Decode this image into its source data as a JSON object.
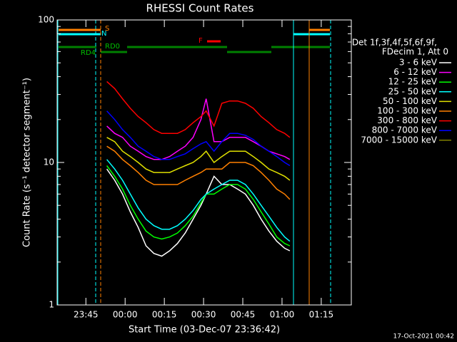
{
  "chart_data": {
    "type": "line",
    "title": "RHESSI Count Rates",
    "x_label": "Start Time (03-Dec-07 23:36:42)",
    "y_label": "Count Rate (s⁻¹ detector segment⁻¹)",
    "log_y": true,
    "legend_header": [
      "Det 1f,3f,4f,5f,6f,9f,",
      "FDecim 1, Att 0"
    ],
    "footer": "17-Oct-2021 00:42",
    "annotations": [
      "S",
      "N",
      "RD0",
      "RD4",
      "F"
    ],
    "xlim": [
      -26,
      86.5
    ],
    "xticks": [
      {
        "value": -15,
        "label": "23:45"
      },
      {
        "value": 0,
        "label": "00:00"
      },
      {
        "value": 15,
        "label": "00:15"
      },
      {
        "value": 30,
        "label": "00:30"
      },
      {
        "value": 45,
        "label": "00:45"
      },
      {
        "value": 60,
        "label": "01:00"
      },
      {
        "value": 75,
        "label": "01:15"
      }
    ],
    "ylim": [
      1,
      100
    ],
    "yticks": [
      1,
      10,
      100
    ],
    "x": [
      -7,
      -4,
      -1,
      2,
      5,
      8,
      11,
      14,
      17,
      20,
      23,
      26,
      29,
      31,
      34,
      37,
      40,
      43,
      46,
      49,
      52,
      55,
      58,
      61,
      63
    ],
    "series": [
      {
        "name": "3 - 6 keV",
        "color": "#ffffff",
        "values": [
          9,
          7.5,
          6,
          4.5,
          3.5,
          2.6,
          2.3,
          2.2,
          2.4,
          2.7,
          3.2,
          4,
          5,
          6,
          8,
          7,
          7,
          6.5,
          6,
          5,
          4,
          3.3,
          2.8,
          2.5,
          2.4
        ]
      },
      {
        "name": "6 - 12 keV",
        "color": "#ff00ff",
        "values": [
          18,
          16,
          15,
          13,
          12,
          11,
          10.5,
          10.5,
          11,
          12,
          13,
          15,
          20,
          28,
          14,
          14,
          15,
          15,
          15,
          14,
          13,
          12,
          11.5,
          11,
          10.5
        ]
      },
      {
        "name": "12 - 25 keV",
        "color": "#00ff00",
        "values": [
          9.5,
          8,
          6.5,
          5,
          4,
          3.3,
          3,
          2.9,
          3,
          3.2,
          3.6,
          4.2,
          5.2,
          6,
          6,
          6.5,
          7,
          7,
          6.5,
          5.5,
          4.5,
          3.7,
          3,
          2.7,
          2.6
        ]
      },
      {
        "name": "25 - 50 keV",
        "color": "#00ffff",
        "values": [
          10.5,
          9,
          7.5,
          6,
          4.8,
          4,
          3.6,
          3.4,
          3.4,
          3.6,
          4,
          4.6,
          5.5,
          6,
          6.5,
          7,
          7.5,
          7.5,
          7,
          6,
          5,
          4.2,
          3.5,
          3,
          2.8
        ]
      },
      {
        "name": "50 - 100 keV",
        "color": "#e0e000",
        "values": [
          15,
          14,
          12,
          11,
          10,
          9,
          8.5,
          8.5,
          8.5,
          9,
          9.5,
          10,
          11,
          12,
          10,
          11,
          12,
          12,
          12,
          11,
          10,
          9,
          8.5,
          8,
          7.5
        ]
      },
      {
        "name": "100 - 300 keV",
        "color": "#ff8000",
        "values": [
          13,
          12,
          10.5,
          9.5,
          8.5,
          7.5,
          7,
          7,
          7,
          7,
          7.5,
          8,
          8.5,
          9,
          9,
          9,
          10,
          10,
          10,
          9.5,
          8.5,
          7.5,
          6.5,
          6,
          5.5
        ]
      },
      {
        "name": "300 - 800 keV",
        "color": "#ff0000",
        "values": [
          37,
          33,
          28,
          24,
          21,
          19,
          17,
          16,
          16,
          16,
          17,
          19,
          21,
          23,
          18,
          26,
          27,
          27,
          26,
          24,
          21,
          19,
          17,
          16,
          15
        ]
      },
      {
        "name": "800 - 7000 keV",
        "color": "#0000ff",
        "values": [
          23,
          20,
          17,
          15,
          13,
          12,
          11,
          10.5,
          10.5,
          11,
          11.5,
          12.5,
          13.5,
          14,
          12,
          14,
          16,
          16,
          15.5,
          14.5,
          13,
          12,
          11,
          10,
          9.5
        ]
      },
      {
        "name": "7000 - 15000 keV",
        "color": "#808000",
        "values": [
          null,
          null,
          null,
          null,
          null,
          null,
          null,
          null,
          null,
          null,
          null,
          null,
          null,
          null,
          null,
          null,
          null,
          null,
          null,
          null,
          null,
          null,
          null,
          null,
          null
        ]
      }
    ]
  }
}
